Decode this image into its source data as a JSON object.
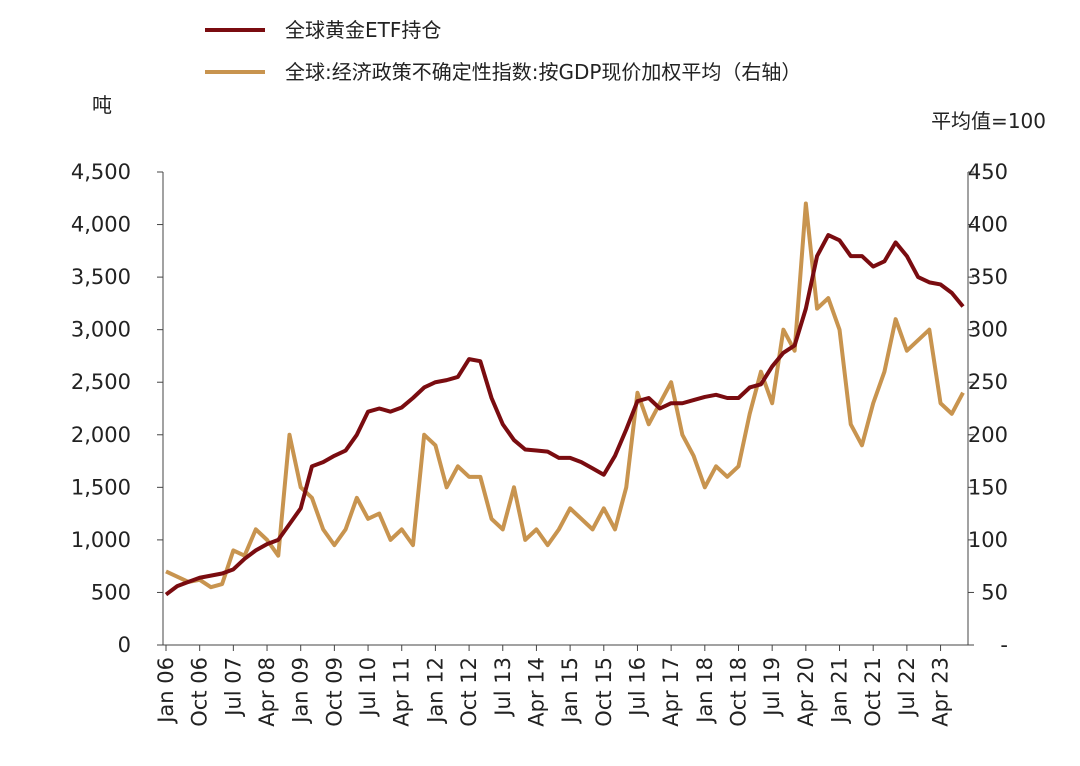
{
  "chart_data": {
    "type": "line",
    "legend_items": [
      "全球黄金ETF持仓",
      "全球:经济政策不确定性指数:按GDP现价加权平均（右轴）"
    ],
    "y_axis_label": "吨",
    "y2_axis_label": "平均值=100",
    "categories": [
      "Jan 06",
      null,
      null,
      "Oct 06",
      null,
      null,
      "Jul 07",
      null,
      null,
      "Apr 08",
      null,
      null,
      "Jan 09",
      null,
      null,
      "Oct 09",
      null,
      null,
      "Jul 10",
      null,
      null,
      "Apr 11",
      null,
      null,
      "Jan 12",
      null,
      null,
      "Oct 12",
      null,
      null,
      "Jul 13",
      null,
      null,
      "Apr 14",
      null,
      null,
      "Jan 15",
      null,
      null,
      "Oct 15",
      null,
      null,
      "Jul 16",
      null,
      null,
      "Apr 17",
      null,
      null,
      "Jan 18",
      null,
      null,
      "Oct 18",
      null,
      null,
      "Jul 19",
      null,
      null,
      "Apr 20",
      null,
      null,
      "Jan 21",
      null,
      null,
      "Oct 21",
      null,
      null,
      "Jul 22",
      null,
      null,
      "Apr 23",
      null,
      null
    ],
    "series": [
      {
        "name": "全球黄金ETF持仓",
        "color": "#7a0c10",
        "axis": "y",
        "values": [
          480,
          560,
          600,
          640,
          660,
          680,
          720,
          820,
          900,
          960,
          1000,
          1150,
          1300,
          1700,
          1740,
          1800,
          1850,
          2000,
          2220,
          2250,
          2220,
          2260,
          2350,
          2450,
          2500,
          2520,
          2550,
          2720,
          2700,
          2350,
          2100,
          1950,
          1860,
          1850,
          1840,
          1780,
          1780,
          1740,
          1680,
          1620,
          1800,
          2050,
          2320,
          2350,
          2250,
          2300,
          2300,
          2330,
          2360,
          2380,
          2350,
          2350,
          2450,
          2480,
          2650,
          2780,
          2850,
          3200,
          3700,
          3900,
          3850,
          3700,
          3700,
          3600,
          3650,
          3830,
          3700,
          3500,
          3450,
          3430,
          3350,
          3220
        ]
      },
      {
        "name": "全球:经济政策不确定性指数:按GDP现价加权平均（右轴）",
        "color": "#c8944f",
        "axis": "y2",
        "values": [
          70,
          65,
          60,
          62,
          55,
          58,
          90,
          85,
          110,
          100,
          85,
          200,
          150,
          140,
          110,
          95,
          110,
          140,
          120,
          125,
          100,
          110,
          95,
          200,
          190,
          150,
          170,
          160,
          160,
          120,
          110,
          150,
          100,
          110,
          95,
          110,
          130,
          120,
          110,
          130,
          110,
          150,
          240,
          210,
          230,
          250,
          200,
          180,
          150,
          170,
          160,
          170,
          220,
          260,
          230,
          300,
          280,
          420,
          320,
          330,
          300,
          210,
          190,
          230,
          260,
          310,
          280,
          290,
          300,
          230,
          220,
          240
        ]
      }
    ],
    "ylim": [
      0,
      4500
    ],
    "yticks": [
      0,
      500,
      {
        "value": 1000,
        "label": "1,000"
      },
      {
        "value": 1500,
        "label": "1,500"
      },
      {
        "value": 2000,
        "label": "2,000"
      },
      {
        "value": 2500,
        "label": "2,500"
      },
      {
        "value": 3000,
        "label": "3,000"
      },
      {
        "value": 3500,
        "label": "3,500"
      },
      {
        "value": 4000,
        "label": "4,000"
      },
      {
        "value": 4500,
        "label": "4,500"
      }
    ],
    "y2lim": [
      0,
      450
    ],
    "y2ticks": [
      {
        "value": 0,
        "label": "-"
      },
      50,
      100,
      150,
      200,
      250,
      300,
      350,
      400,
      450
    ]
  }
}
